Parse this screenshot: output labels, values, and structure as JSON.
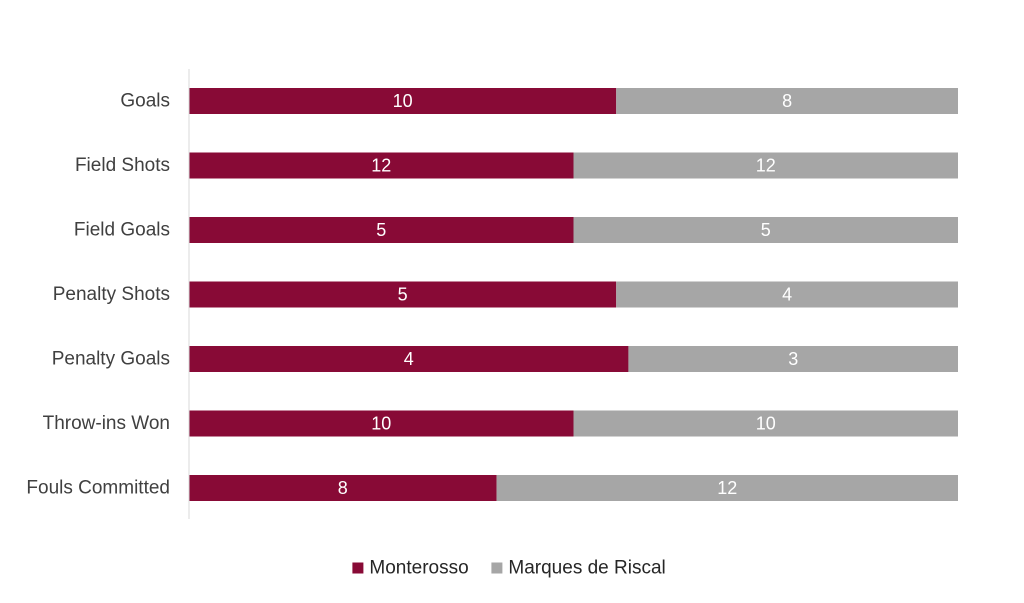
{
  "chart_data": {
    "type": "bar",
    "orientation": "horizontal",
    "stacking": "percent",
    "categories": [
      "Goals",
      "Field Shots",
      "Field Goals",
      "Penalty Shots",
      "Penalty Goals",
      "Throw-ins Won",
      "Fouls Committed"
    ],
    "series": [
      {
        "name": "Monterosso",
        "values": [
          10,
          12,
          5,
          5,
          4,
          10,
          8
        ],
        "color": "#880a36"
      },
      {
        "name": "Marques de Riscal",
        "values": [
          8,
          12,
          5,
          4,
          3,
          10,
          12
        ],
        "color": "#a6a6a6"
      }
    ],
    "data_labels": true,
    "grid": false,
    "legend_position": "bottom"
  }
}
